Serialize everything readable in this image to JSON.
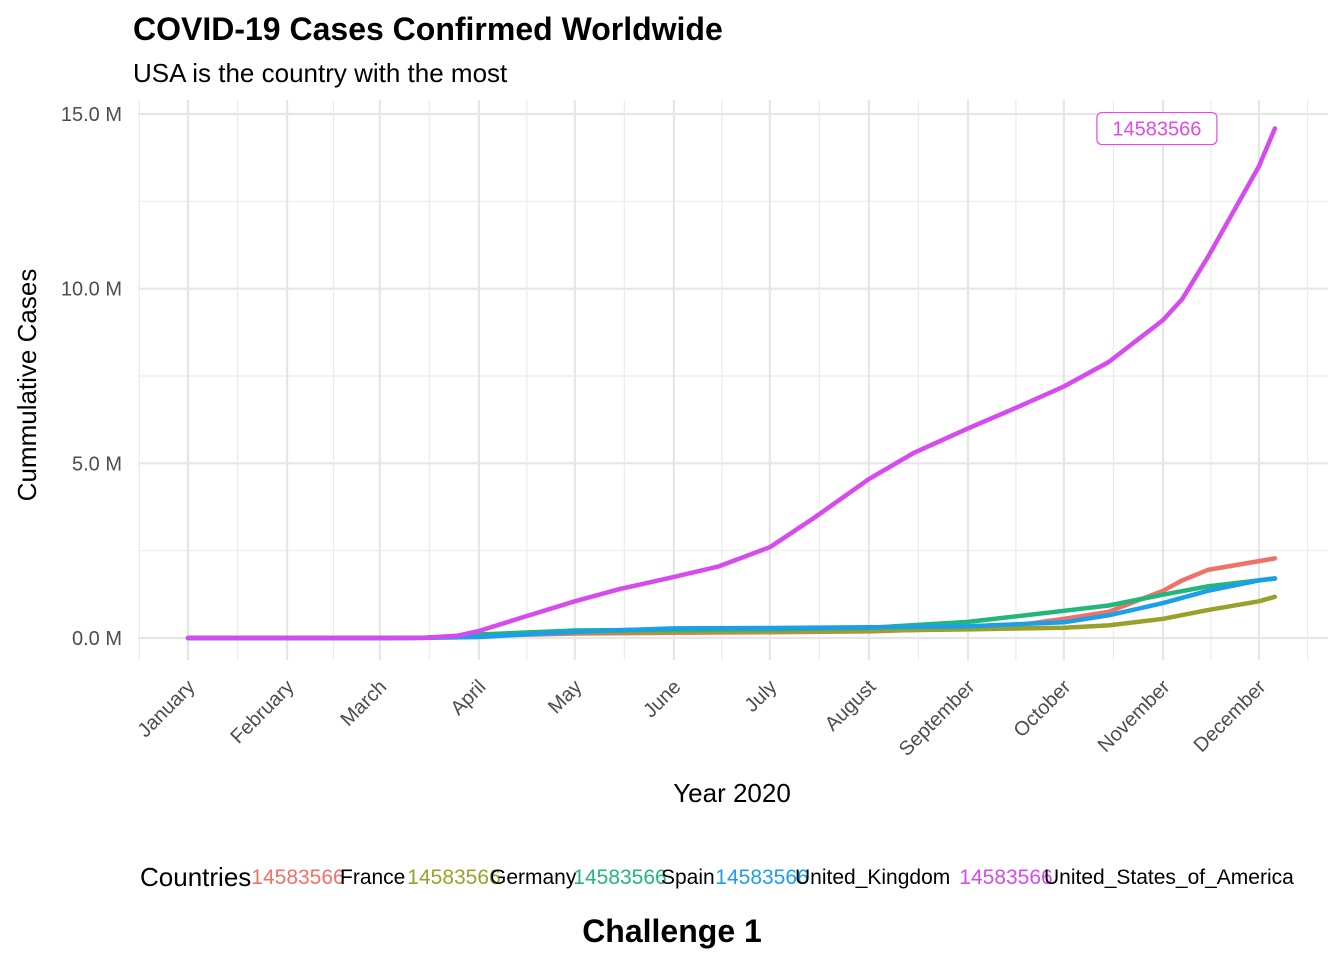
{
  "chart_data": {
    "type": "line",
    "title": "COVID-19 Cases Confirmed Worldwide",
    "subtitle": "USA is the country with the most",
    "xlabel": "Year 2020",
    "ylabel": "Cummulative Cases",
    "caption": "Challenge 1",
    "legend_title": "Countries",
    "legend_key_label": "14583566",
    "legend_position": "bottom",
    "grid": true,
    "ylim": [
      0,
      15000000
    ],
    "y_ticks": [
      {
        "value": 0,
        "label": "0.0 M"
      },
      {
        "value": 5000000,
        "label": "5.0 M"
      },
      {
        "value": 10000000,
        "label": "10.0 M"
      },
      {
        "value": 15000000,
        "label": "15.0 M"
      }
    ],
    "x_ticks": [
      {
        "date": "2020-01-01",
        "label": "January"
      },
      {
        "date": "2020-02-01",
        "label": "February"
      },
      {
        "date": "2020-03-01",
        "label": "March"
      },
      {
        "date": "2020-04-01",
        "label": "April"
      },
      {
        "date": "2020-05-01",
        "label": "May"
      },
      {
        "date": "2020-06-01",
        "label": "June"
      },
      {
        "date": "2020-07-01",
        "label": "July"
      },
      {
        "date": "2020-08-01",
        "label": "August"
      },
      {
        "date": "2020-09-01",
        "label": "September"
      },
      {
        "date": "2020-10-01",
        "label": "October"
      },
      {
        "date": "2020-11-01",
        "label": "November"
      },
      {
        "date": "2020-12-01",
        "label": "December"
      }
    ],
    "annotation": {
      "date": "2020-12-06",
      "value": 14583566,
      "label": "14583566",
      "color": "#E24BE6"
    },
    "series": [
      {
        "name": "France",
        "color": "#F07167",
        "points": [
          [
            "2020-01-01",
            0
          ],
          [
            "2020-03-01",
            100
          ],
          [
            "2020-03-15",
            5000
          ],
          [
            "2020-04-01",
            60000
          ],
          [
            "2020-05-01",
            130000
          ],
          [
            "2020-06-01",
            150000
          ],
          [
            "2020-07-01",
            165000
          ],
          [
            "2020-08-01",
            190000
          ],
          [
            "2020-09-01",
            280000
          ],
          [
            "2020-09-15",
            350000
          ],
          [
            "2020-10-01",
            550000
          ],
          [
            "2020-10-15",
            750000
          ],
          [
            "2020-11-01",
            1350000
          ],
          [
            "2020-11-07",
            1650000
          ],
          [
            "2020-11-15",
            1950000
          ],
          [
            "2020-12-01",
            2200000
          ],
          [
            "2020-12-06",
            2280000
          ]
        ]
      },
      {
        "name": "Germany",
        "color": "#99A12A",
        "points": [
          [
            "2020-01-01",
            0
          ],
          [
            "2020-03-01",
            100
          ],
          [
            "2020-03-15",
            5000
          ],
          [
            "2020-04-01",
            70000
          ],
          [
            "2020-05-01",
            160000
          ],
          [
            "2020-06-01",
            180000
          ],
          [
            "2020-07-01",
            195000
          ],
          [
            "2020-08-01",
            210000
          ],
          [
            "2020-09-01",
            245000
          ],
          [
            "2020-10-01",
            295000
          ],
          [
            "2020-10-15",
            360000
          ],
          [
            "2020-11-01",
            550000
          ],
          [
            "2020-11-15",
            800000
          ],
          [
            "2020-12-01",
            1050000
          ],
          [
            "2020-12-06",
            1180000
          ]
        ]
      },
      {
        "name": "Spain",
        "color": "#22B77A",
        "points": [
          [
            "2020-01-01",
            0
          ],
          [
            "2020-03-01",
            100
          ],
          [
            "2020-03-15",
            8000
          ],
          [
            "2020-04-01",
            100000
          ],
          [
            "2020-05-01",
            215000
          ],
          [
            "2020-06-01",
            240000
          ],
          [
            "2020-07-01",
            250000
          ],
          [
            "2020-08-01",
            290000
          ],
          [
            "2020-09-01",
            460000
          ],
          [
            "2020-10-01",
            780000
          ],
          [
            "2020-10-15",
            930000
          ],
          [
            "2020-11-01",
            1240000
          ],
          [
            "2020-11-15",
            1480000
          ],
          [
            "2020-12-01",
            1650000
          ],
          [
            "2020-12-06",
            1700000
          ]
        ]
      },
      {
        "name": "United_Kingdom",
        "color": "#1C9FE8",
        "points": [
          [
            "2020-01-01",
            0
          ],
          [
            "2020-03-01",
            100
          ],
          [
            "2020-03-15",
            2000
          ],
          [
            "2020-04-01",
            30000
          ],
          [
            "2020-05-01",
            180000
          ],
          [
            "2020-06-01",
            275000
          ],
          [
            "2020-07-01",
            285000
          ],
          [
            "2020-08-01",
            305000
          ],
          [
            "2020-09-01",
            335000
          ],
          [
            "2020-10-01",
            450000
          ],
          [
            "2020-10-15",
            650000
          ],
          [
            "2020-11-01",
            1000000
          ],
          [
            "2020-11-15",
            1350000
          ],
          [
            "2020-12-01",
            1650000
          ],
          [
            "2020-12-06",
            1710000
          ]
        ]
      },
      {
        "name": "United_States_of_America",
        "color": "#D64AF0",
        "points": [
          [
            "2020-01-01",
            0
          ],
          [
            "2020-03-01",
            100
          ],
          [
            "2020-03-15",
            3000
          ],
          [
            "2020-03-25",
            60000
          ],
          [
            "2020-04-01",
            200000
          ],
          [
            "2020-04-15",
            600000
          ],
          [
            "2020-05-01",
            1050000
          ],
          [
            "2020-05-15",
            1400000
          ],
          [
            "2020-06-01",
            1750000
          ],
          [
            "2020-06-15",
            2050000
          ],
          [
            "2020-07-01",
            2600000
          ],
          [
            "2020-07-15",
            3450000
          ],
          [
            "2020-08-01",
            4550000
          ],
          [
            "2020-08-15",
            5300000
          ],
          [
            "2020-09-01",
            6000000
          ],
          [
            "2020-09-15",
            6550000
          ],
          [
            "2020-10-01",
            7200000
          ],
          [
            "2020-10-15",
            7900000
          ],
          [
            "2020-11-01",
            9100000
          ],
          [
            "2020-11-07",
            9700000
          ],
          [
            "2020-11-15",
            10900000
          ],
          [
            "2020-12-01",
            13500000
          ],
          [
            "2020-12-06",
            14583566
          ]
        ]
      }
    ]
  }
}
